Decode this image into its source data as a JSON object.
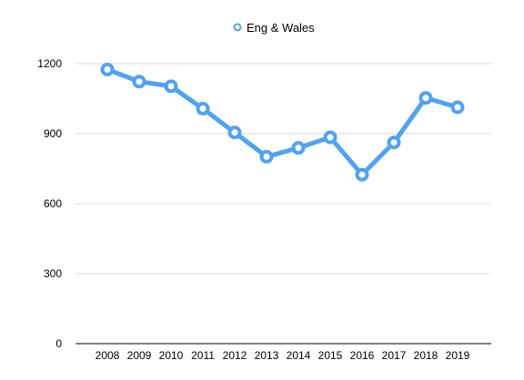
{
  "chart_data": {
    "type": "line",
    "categories": [
      "2008",
      "2009",
      "2010",
      "2011",
      "2012",
      "2013",
      "2014",
      "2015",
      "2016",
      "2017",
      "2018",
      "2019"
    ],
    "series": [
      {
        "name": "Eng & Wales",
        "values": [
          1175,
          1123,
          1103,
          1007,
          905,
          801,
          839,
          884,
          724,
          862,
          1053,
          1013
        ],
        "color": "#4fa3ef"
      }
    ],
    "ylim": [
      0,
      1200
    ],
    "yticks": [
      0,
      300,
      600,
      900,
      1200
    ],
    "grid": true,
    "legend_position": "top-center",
    "title": "",
    "xlabel": "",
    "ylabel": ""
  }
}
